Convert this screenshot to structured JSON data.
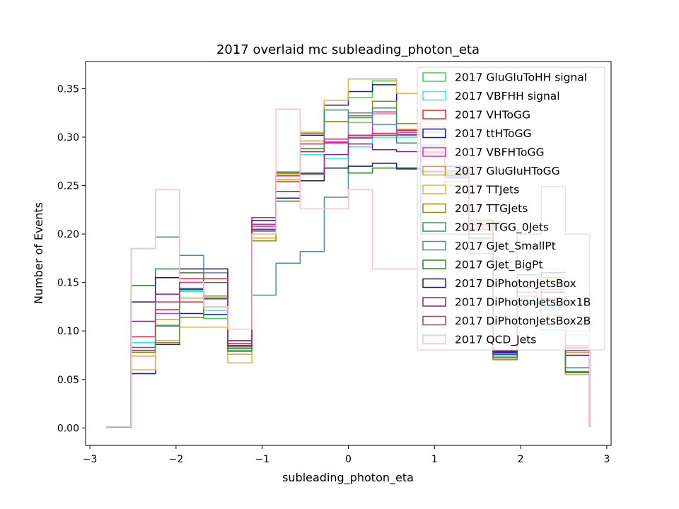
{
  "chart_data": {
    "type": "step-histogram",
    "title": "2017 overlaid mc subleading_photon_eta",
    "xlabel": "subleading_photon_eta",
    "ylabel": "Number of Events",
    "xlim": [
      -3.05,
      3.05
    ],
    "ylim": [
      -0.018,
      0.378
    ],
    "x_ticks": [
      -3,
      -2,
      -1,
      0,
      1,
      2,
      3
    ],
    "x_tick_labels": [
      "−3",
      "−2",
      "−1",
      "0",
      "1",
      "2",
      "3"
    ],
    "y_ticks": [
      0.0,
      0.05,
      0.1,
      0.15,
      0.2,
      0.25,
      0.3,
      0.35
    ],
    "y_tick_labels": [
      "0.00",
      "0.05",
      "0.10",
      "0.15",
      "0.20",
      "0.25",
      "0.30",
      "0.35"
    ],
    "bin_edges": [
      -2.8,
      -2.52,
      -2.24,
      -1.96,
      -1.68,
      -1.4,
      -1.12,
      -0.84,
      -0.56,
      -0.28,
      0.0,
      0.28,
      0.56,
      0.84,
      1.12,
      1.4,
      1.68,
      1.96,
      2.24,
      2.52,
      2.8
    ],
    "legend_position": "upper right",
    "series": [
      {
        "name": "2017 GluGluToHH signal",
        "color": "#3fd34f",
        "values": [
          0.001,
          0.08,
          0.106,
          0.141,
          0.113,
          0.08,
          0.204,
          0.262,
          0.285,
          0.338,
          0.341,
          0.358,
          0.308,
          0.292,
          0.25,
          0.205,
          0.077,
          0.128,
          0.101,
          0.085,
          0.001
        ]
      },
      {
        "name": "2017 VBFHH signal",
        "color": "#22f2f0",
        "values": [
          0.001,
          0.088,
          0.118,
          0.142,
          0.121,
          0.083,
          0.208,
          0.26,
          0.282,
          0.278,
          0.29,
          0.3,
          0.3,
          0.28,
          0.26,
          0.195,
          0.075,
          0.132,
          0.122,
          0.096,
          0.001
        ]
      },
      {
        "name": "2017 VHToGG",
        "color": "#e3262c",
        "values": [
          0.001,
          0.08,
          0.122,
          0.13,
          0.154,
          0.09,
          0.217,
          0.254,
          0.285,
          0.294,
          0.299,
          0.302,
          0.307,
          0.285,
          0.262,
          0.2,
          0.08,
          0.14,
          0.13,
          0.082,
          0.001
        ]
      },
      {
        "name": "2017 ttHToGG",
        "color": "#1515d8",
        "values": [
          0.001,
          0.056,
          0.086,
          0.118,
          0.117,
          0.087,
          0.214,
          0.26,
          0.302,
          0.333,
          0.347,
          0.354,
          0.308,
          0.283,
          0.258,
          0.21,
          0.078,
          0.128,
          0.16,
          0.075,
          0.001
        ]
      },
      {
        "name": "2017 VBFHToGG",
        "color": "#e22ae9",
        "values": [
          0.001,
          0.083,
          0.118,
          0.15,
          0.125,
          0.087,
          0.208,
          0.256,
          0.288,
          0.295,
          0.3,
          0.326,
          0.305,
          0.284,
          0.27,
          0.214,
          0.076,
          0.14,
          0.124,
          0.083,
          0.001
        ]
      },
      {
        "name": "2017 GluGluHToGG",
        "color": "#f29522",
        "values": [
          0.001,
          0.074,
          0.112,
          0.134,
          0.125,
          0.076,
          0.196,
          0.256,
          0.296,
          0.316,
          0.315,
          0.324,
          0.308,
          0.283,
          0.254,
          0.208,
          0.077,
          0.134,
          0.116,
          0.078,
          0.001
        ]
      },
      {
        "name": "2017 TTJets",
        "color": "#e0ae48",
        "values": [
          0.001,
          0.06,
          0.09,
          0.104,
          0.104,
          0.067,
          0.196,
          0.262,
          0.305,
          0.338,
          0.36,
          0.36,
          0.345,
          0.311,
          0.254,
          0.215,
          0.07,
          0.125,
          0.143,
          0.055,
          0.001
        ]
      },
      {
        "name": "2017 TTGJets",
        "color": "#8c8a12",
        "values": [
          0.001,
          0.078,
          0.088,
          0.114,
          0.136,
          0.084,
          0.193,
          0.263,
          0.304,
          0.316,
          0.322,
          0.337,
          0.314,
          0.305,
          0.264,
          0.214,
          0.071,
          0.136,
          0.155,
          0.058,
          0.001
        ]
      },
      {
        "name": "2017 TTGG_0Jets",
        "color": "#3b8c6d",
        "values": [
          0.001,
          0.083,
          0.105,
          0.144,
          0.133,
          0.079,
          0.203,
          0.264,
          0.288,
          0.328,
          0.32,
          0.33,
          0.294,
          0.29,
          0.262,
          0.214,
          0.076,
          0.13,
          0.126,
          0.062,
          0.001
        ]
      },
      {
        "name": "2017 GJet_SmallPt",
        "color": "#4d86b8",
        "values": [
          0.001,
          0.185,
          0.197,
          0.178,
          0.16,
          0.085,
          0.137,
          0.17,
          0.182,
          0.238,
          0.325,
          0.313,
          0.302,
          0.2,
          0.2,
          0.18,
          0.172,
          0.2,
          0.249,
          0.2,
          0.001
        ]
      },
      {
        "name": "2017 GJet_BigPt",
        "color": "#258b25",
        "values": [
          0.001,
          0.147,
          0.164,
          0.16,
          0.15,
          0.082,
          0.2,
          0.234,
          0.263,
          0.268,
          0.263,
          0.268,
          0.267,
          0.265,
          0.262,
          0.196,
          0.073,
          0.158,
          0.151,
          0.057,
          0.001
        ]
      },
      {
        "name": "2017 DiPhotonJetsBox",
        "color": "#1a1a72",
        "values": [
          0.001,
          0.13,
          0.155,
          0.164,
          0.164,
          0.09,
          0.21,
          0.237,
          0.255,
          0.268,
          0.27,
          0.273,
          0.268,
          0.264,
          0.26,
          0.21,
          0.079,
          0.15,
          0.14,
          0.08,
          0.001
        ]
      },
      {
        "name": "2017 DiPhotonJetsBox1B",
        "color": "#84238a",
        "values": [
          0.001,
          0.11,
          0.138,
          0.143,
          0.134,
          0.085,
          0.205,
          0.244,
          0.262,
          0.282,
          0.293,
          0.287,
          0.285,
          0.27,
          0.27,
          0.205,
          0.076,
          0.145,
          0.133,
          0.083,
          0.001
        ]
      },
      {
        "name": "2017 DiPhotonJetsBox2B",
        "color": "#cf2d4f",
        "values": [
          0.001,
          0.094,
          0.13,
          0.154,
          0.154,
          0.09,
          0.21,
          0.26,
          0.293,
          0.298,
          0.302,
          0.304,
          0.303,
          0.284,
          0.265,
          0.21,
          0.08,
          0.15,
          0.143,
          0.085,
          0.001
        ]
      },
      {
        "name": "2017 QCD_Jets",
        "color": "#ffc0cb",
        "values": [
          0.001,
          0.185,
          0.246,
          0.151,
          0.125,
          0.102,
          0.2,
          0.329,
          0.226,
          0.226,
          0.246,
          0.164,
          0.164,
          0.164,
          0.164,
          0.164,
          0.164,
          0.164,
          0.164,
          0.1,
          0.001
        ]
      }
    ]
  }
}
